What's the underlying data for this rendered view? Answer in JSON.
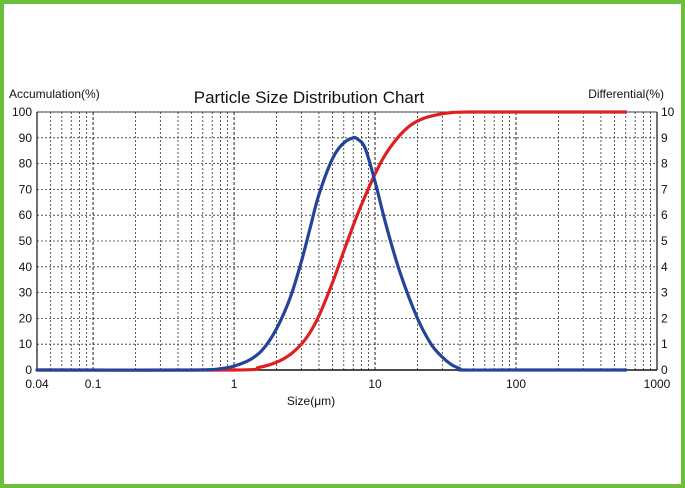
{
  "chart_data": {
    "type": "line",
    "title": "Particle Size Distribution Chart",
    "xlabel": "Size(μm)",
    "ylabel_left": "Accumulation(%)",
    "ylabel_right": "Differential(%)",
    "xscale": "log",
    "xlim": [
      0.04,
      1000
    ],
    "ylim_left": [
      0,
      100
    ],
    "ylim_right": [
      0,
      10
    ],
    "grid": true,
    "x_ticks": [
      {
        "value": 0.04,
        "label": "0.04"
      },
      {
        "value": 0.1,
        "label": "0.1"
      },
      {
        "value": 1,
        "label": "1"
      },
      {
        "value": 10,
        "label": "10"
      },
      {
        "value": 100,
        "label": "100"
      },
      {
        "value": 1000,
        "label": "1000"
      }
    ],
    "y_left_ticks": [
      "0",
      "10",
      "20",
      "30",
      "40",
      "50",
      "60",
      "70",
      "80",
      "90",
      "100"
    ],
    "y_right_ticks": [
      "0",
      "1",
      "2",
      "3",
      "4",
      "5",
      "6",
      "7",
      "8",
      "9",
      "10"
    ],
    "series": [
      {
        "name": "Accumulation",
        "axis": "left",
        "color": "#e02020",
        "x": [
          0.04,
          1.0,
          1.5,
          2.0,
          2.5,
          3.0,
          3.5,
          4.0,
          5.0,
          6.0,
          7.0,
          8.0,
          10.0,
          12.0,
          15.0,
          18.0,
          22.0,
          28.0,
          35.0,
          45.0,
          60.0,
          100.0,
          300.0,
          600.0
        ],
        "y": [
          0,
          0,
          1,
          3,
          6,
          10,
          15,
          21,
          34,
          46,
          56,
          64,
          76,
          84,
          91,
          95,
          97.5,
          99,
          99.8,
          100,
          100,
          100,
          100,
          100
        ]
      },
      {
        "name": "Differential",
        "axis": "right",
        "color": "#24449a",
        "x": [
          0.04,
          0.5,
          0.8,
          1.0,
          1.3,
          1.6,
          2.0,
          2.5,
          3.0,
          3.5,
          4.0,
          5.0,
          6.0,
          7.0,
          7.5,
          8.5,
          10.0,
          12.0,
          15.0,
          20.0,
          25.0,
          30.0,
          35.0,
          40.0,
          42.0,
          100.0,
          600.0
        ],
        "y": [
          0,
          0,
          0.05,
          0.15,
          0.4,
          0.8,
          1.6,
          2.8,
          4.2,
          5.6,
          6.8,
          8.2,
          8.8,
          9.0,
          8.95,
          8.6,
          7.3,
          5.6,
          3.8,
          2.0,
          1.0,
          0.5,
          0.2,
          0.05,
          0,
          0,
          0
        ]
      }
    ]
  }
}
